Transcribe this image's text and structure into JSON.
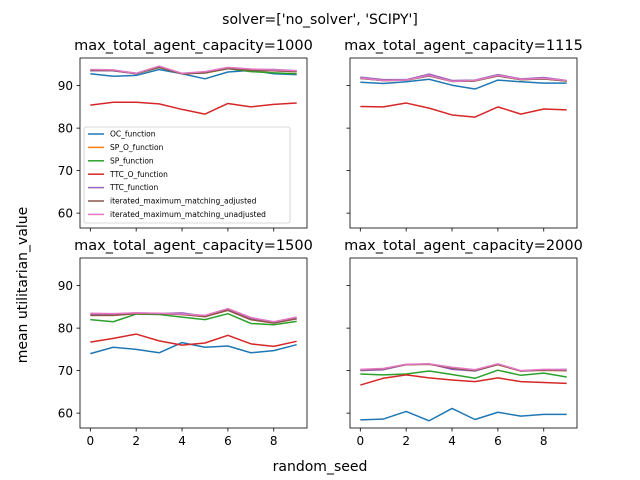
{
  "figure": {
    "suptitle": "solver=['no_solver', 'SCIPY']",
    "xlabel": "random_seed",
    "ylabel": "mean utilitarian_value"
  },
  "chart_data": {
    "type": "line",
    "x": [
      0,
      1,
      2,
      3,
      4,
      5,
      6,
      7,
      8,
      9
    ],
    "xlim": [
      -0.45,
      9.45
    ],
    "ylim": [
      56.5,
      96.5
    ],
    "xticks": [
      0,
      2,
      4,
      6,
      8
    ],
    "yticks": [
      60,
      70,
      80,
      90
    ],
    "grid": false,
    "legend": {
      "placement": "lower-left of first panel",
      "entries": [
        "OC_function",
        "SP_O_function",
        "SP_function",
        "TTC_O_function",
        "TTC_function",
        "iterated_maximum_matching_adjusted",
        "iterated_maximum_matching_unadjusted"
      ]
    },
    "colors": [
      "#1f77b4",
      "#ff7f0e",
      "#2ca02c",
      "#d62728",
      "#9467bd",
      "#8c564b",
      "#e377c2"
    ],
    "panels": [
      {
        "title": "max_total_agent_capacity=1000",
        "series": [
          {
            "name": "OC_function",
            "values": [
              92.8,
              92.2,
              92.4,
              93.8,
              92.8,
              91.6,
              93.2,
              93.6,
              92.8,
              92.6
            ]
          },
          {
            "name": "SP_O_function",
            "values": [
              93.5,
              93.5,
              92.8,
              94.3,
              92.8,
              93.0,
              94.0,
              93.6,
              93.5,
              93.3
            ]
          },
          {
            "name": "SP_function",
            "values": [
              93.5,
              93.5,
              92.8,
              94.3,
              92.8,
              93.0,
              94.0,
              93.3,
              93.0,
              92.8
            ]
          },
          {
            "name": "TTC_O_function",
            "values": [
              85.4,
              86.1,
              86.1,
              85.7,
              84.4,
              83.3,
              85.8,
              85.0,
              85.6,
              85.9
            ]
          },
          {
            "name": "TTC_function",
            "values": [
              93.5,
              93.5,
              92.8,
              94.4,
              92.8,
              93.2,
              94.2,
              93.8,
              93.8,
              93.5
            ]
          },
          {
            "name": "iterated_maximum_matching_adjusted",
            "values": [
              93.6,
              93.6,
              92.9,
              94.3,
              92.8,
              93.0,
              94.0,
              93.6,
              93.5,
              93.3
            ]
          },
          {
            "name": "iterated_maximum_matching_unadjusted",
            "values": [
              93.8,
              93.7,
              92.9,
              94.6,
              92.9,
              93.3,
              94.3,
              93.9,
              93.7,
              93.5
            ]
          }
        ]
      },
      {
        "title": "max_total_agent_capacity=1115",
        "series": [
          {
            "name": "OC_function",
            "values": [
              90.8,
              90.5,
              90.9,
              91.5,
              90.1,
              89.2,
              91.3,
              90.9,
              90.6,
              90.6
            ]
          },
          {
            "name": "SP_O_function",
            "values": [
              91.7,
              91.2,
              91.3,
              92.3,
              91.0,
              91.1,
              92.3,
              91.4,
              91.6,
              91.1
            ]
          },
          {
            "name": "SP_function",
            "values": [
              91.7,
              91.2,
              91.3,
              92.3,
              91.0,
              91.1,
              92.3,
              91.4,
              91.6,
              91.1
            ]
          },
          {
            "name": "TTC_O_function",
            "values": [
              85.1,
              85.0,
              85.9,
              84.7,
              83.1,
              82.6,
              85.0,
              83.3,
              84.5,
              84.3
            ]
          },
          {
            "name": "TTC_function",
            "values": [
              92.0,
              91.4,
              91.4,
              92.7,
              91.2,
              91.3,
              92.6,
              91.6,
              91.9,
              91.2
            ]
          },
          {
            "name": "iterated_maximum_matching_adjusted",
            "values": [
              91.7,
              91.2,
              91.3,
              92.3,
              91.0,
              91.1,
              92.3,
              91.4,
              91.6,
              91.1
            ]
          },
          {
            "name": "iterated_maximum_matching_unadjusted",
            "values": [
              91.8,
              91.2,
              91.3,
              92.4,
              91.0,
              91.2,
              92.4,
              91.5,
              91.7,
              91.2
            ]
          }
        ]
      },
      {
        "title": "max_total_agent_capacity=1500",
        "series": [
          {
            "name": "OC_function",
            "values": [
              74.0,
              75.5,
              75.0,
              74.2,
              76.6,
              75.5,
              75.8,
              74.2,
              74.7,
              76.1
            ]
          },
          {
            "name": "SP_O_function",
            "values": [
              83.0,
              83.0,
              83.4,
              83.4,
              83.2,
              82.7,
              84.2,
              82.0,
              81.2,
              82.2
            ]
          },
          {
            "name": "SP_function",
            "values": [
              82.0,
              81.5,
              83.3,
              83.2,
              82.6,
              82.0,
              83.4,
              81.1,
              80.8,
              81.6
            ]
          },
          {
            "name": "TTC_O_function",
            "values": [
              76.7,
              77.6,
              78.6,
              77.0,
              76.0,
              76.5,
              78.3,
              76.3,
              75.7,
              76.9
            ]
          },
          {
            "name": "TTC_function",
            "values": [
              83.3,
              83.2,
              83.6,
              83.4,
              83.6,
              82.8,
              84.5,
              82.3,
              81.2,
              82.3
            ]
          },
          {
            "name": "iterated_maximum_matching_adjusted",
            "values": [
              83.0,
              83.0,
              83.4,
              83.4,
              83.2,
              82.7,
              84.2,
              82.0,
              81.2,
              82.2
            ]
          },
          {
            "name": "iterated_maximum_matching_unadjusted",
            "values": [
              83.5,
              83.4,
              83.6,
              83.5,
              83.3,
              83.0,
              84.6,
              82.5,
              81.5,
              82.6
            ]
          }
        ]
      },
      {
        "title": "max_total_agent_capacity=2000",
        "series": [
          {
            "name": "OC_function",
            "values": [
              58.4,
              58.6,
              60.4,
              58.2,
              61.1,
              58.5,
              60.2,
              59.3,
              59.7,
              59.7
            ]
          },
          {
            "name": "SP_O_function",
            "values": [
              70.2,
              70.4,
              71.4,
              71.5,
              70.6,
              70.0,
              71.4,
              69.9,
              70.1,
              70.0
            ]
          },
          {
            "name": "SP_function",
            "values": [
              69.2,
              69.0,
              69.2,
              69.9,
              69.1,
              68.2,
              70.1,
              68.9,
              69.4,
              68.5
            ]
          },
          {
            "name": "TTC_O_function",
            "values": [
              66.6,
              68.2,
              69.0,
              68.3,
              67.8,
              67.4,
              68.3,
              67.4,
              67.2,
              67.0
            ]
          },
          {
            "name": "TTC_function",
            "values": [
              70.0,
              70.2,
              71.4,
              71.6,
              70.3,
              69.9,
              71.5,
              69.9,
              70.2,
              70.3
            ]
          },
          {
            "name": "iterated_maximum_matching_adjusted",
            "values": [
              70.2,
              70.4,
              71.4,
              71.5,
              70.6,
              70.0,
              71.4,
              69.9,
              70.1,
              70.0
            ]
          },
          {
            "name": "iterated_maximum_matching_unadjusted",
            "values": [
              70.3,
              70.5,
              71.5,
              71.6,
              70.8,
              70.2,
              71.6,
              70.0,
              70.3,
              70.2
            ]
          }
        ]
      }
    ]
  }
}
